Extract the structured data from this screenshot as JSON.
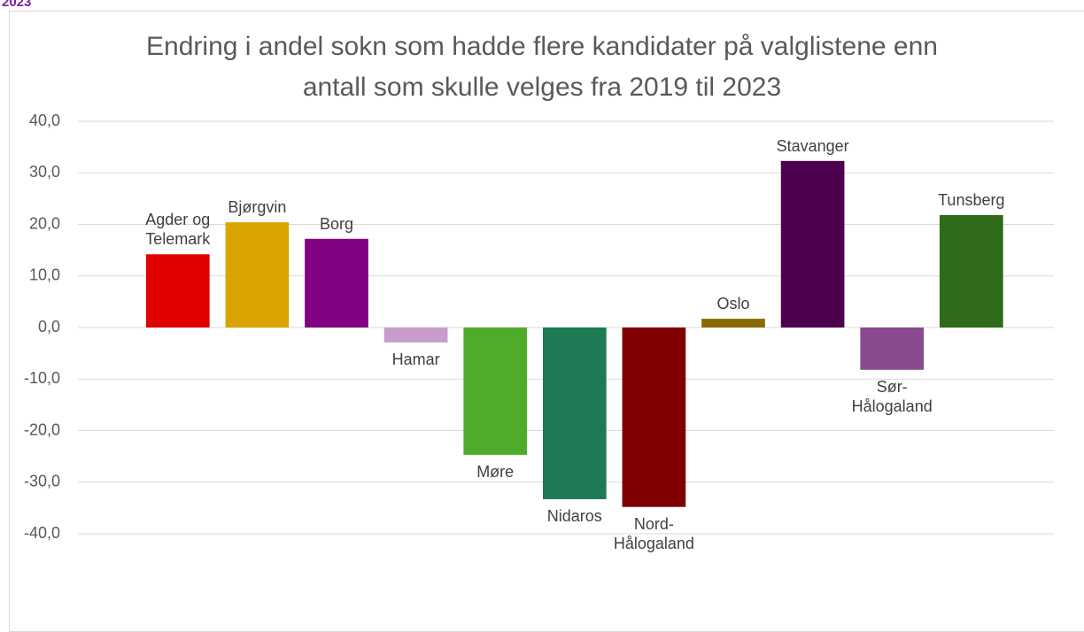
{
  "caption": "2023",
  "chart_data": {
    "type": "bar",
    "title": "Endring i andel sokn som hadde flere kandidater på valglistene enn antall som skulle velges fra 2019 til 2023",
    "categories": [
      "Agder og Telemark",
      "Bjørgvin",
      "Borg",
      "Hamar",
      "Møre",
      "Nidaros",
      "Nord-Hålogaland",
      "Oslo",
      "Stavanger",
      "Sør-Hålogaland",
      "Tunsberg"
    ],
    "values": [
      14.2,
      20.4,
      17.2,
      -2.9,
      -24.7,
      -33.3,
      -34.8,
      1.7,
      32.3,
      -8.2,
      21.8
    ],
    "colors": [
      "#e00000",
      "#d9a400",
      "#820082",
      "#c89ccc",
      "#4fac2b",
      "#1e7a55",
      "#800000",
      "#8a6a00",
      "#4d004d",
      "#8a4a90",
      "#2e6b1a"
    ],
    "ylim": [
      -40,
      40
    ],
    "yticks": [
      {
        "value": -40,
        "label": "-40,0"
      },
      {
        "value": -30,
        "label": "-30,0"
      },
      {
        "value": -20,
        "label": "-20,0"
      },
      {
        "value": -10,
        "label": "-10,0"
      },
      {
        "value": 0,
        "label": "0,0"
      },
      {
        "value": 10,
        "label": "10,0"
      },
      {
        "value": 20,
        "label": "20,0"
      },
      {
        "value": 30,
        "label": "30,0"
      },
      {
        "value": 40,
        "label": "40,0"
      }
    ],
    "grid": true
  }
}
